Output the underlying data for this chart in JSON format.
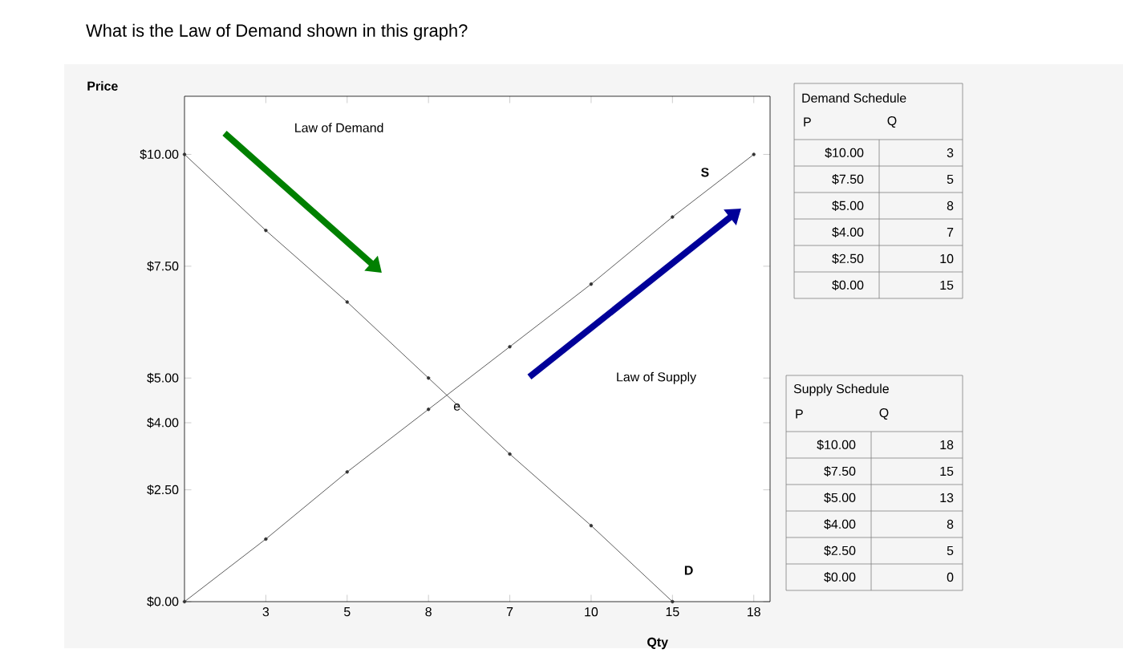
{
  "chart_data": {
    "type": "line",
    "title": "What is the Law of Demand shown in this graph?",
    "xlabel": "Qty",
    "ylabel": "Price",
    "categories": [
      null,
      "3",
      "5",
      "8",
      "7",
      "10",
      "15",
      "18"
    ],
    "series": [
      {
        "name": "D",
        "color": "#333333",
        "values": [
          10,
          8.3,
          6.7,
          5,
          3.3,
          1.7,
          0,
          null
        ]
      },
      {
        "name": "S",
        "color": "#333333",
        "values": [
          0,
          1.4,
          2.9,
          4.3,
          5.7,
          7.1,
          8.6,
          10
        ]
      }
    ],
    "ylim": [
      0,
      11.3
    ],
    "yticks": [
      {
        "value": 0,
        "label": "$0.00"
      },
      {
        "value": 2.5,
        "label": "$2.50"
      },
      {
        "value": 4,
        "label": "$4.00"
      },
      {
        "value": 5,
        "label": "$5.00"
      },
      {
        "value": 7.5,
        "label": "$7.50"
      },
      {
        "value": 10,
        "label": "$10.00"
      }
    ],
    "marker": "circle",
    "line_style": "solid",
    "grid": false,
    "annotations": [
      "Law of Demand",
      "Law of Supply",
      "e",
      "Demand Schedule",
      "P",
      "Q",
      "$10.00",
      "$7.50",
      "$5.00",
      "$4.00",
      "$2.50",
      "$0.00",
      "3",
      "5",
      "8",
      "7",
      "10",
      "15",
      "Supply Schedule",
      "P",
      "Q",
      "$10.00",
      "$7.50",
      "$5.00",
      "$4.00",
      "$2.50",
      "$0.00",
      "18",
      "15",
      "13",
      "8",
      "5",
      "0"
    ]
  }
}
